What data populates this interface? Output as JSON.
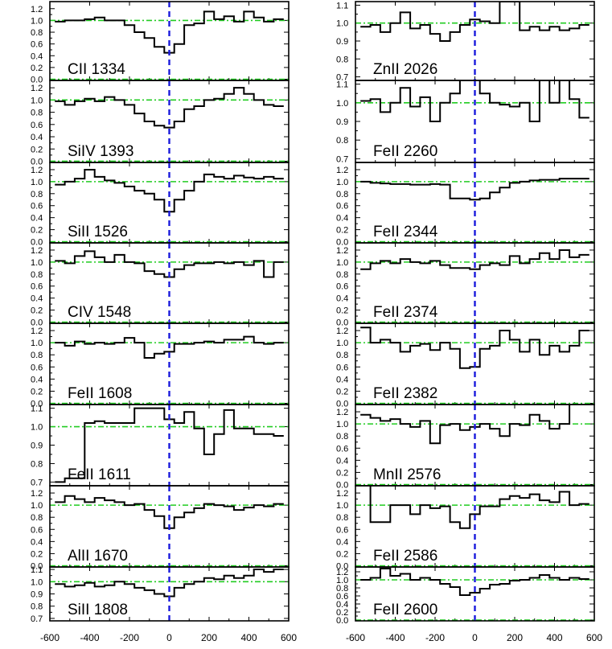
{
  "chart_data": {
    "type": "line",
    "plot_style": "step",
    "x_ticks": [
      -600,
      -400,
      -200,
      0,
      200,
      400,
      600
    ],
    "x_tick_labels": [
      "-600",
      "-400",
      "-200",
      "0",
      "200",
      "400",
      "600"
    ],
    "xlim": [
      -600,
      600
    ],
    "reference_lines": {
      "velocity_zero": 0,
      "y_levels": [
        0.0,
        1.0
      ],
      "zero_line_color": "#1a1adc",
      "level_line_color": "#22cc22"
    },
    "panels": [
      {
        "label": "CII 1334",
        "column": "left",
        "ylim": [
          -0.02,
          1.32
        ],
        "y_ticks": [
          "0.0",
          "0.2",
          "0.4",
          "0.6",
          "0.8",
          "1.0",
          "1.2"
        ],
        "x": [
          -550,
          -500,
          -450,
          -400,
          -350,
          -300,
          -250,
          -200,
          -150,
          -100,
          -50,
          0,
          50,
          100,
          150,
          200,
          250,
          300,
          350,
          400,
          450,
          500,
          550
        ],
        "y": [
          0.98,
          1.0,
          1.0,
          1.02,
          1.05,
          1.0,
          1.0,
          0.92,
          0.8,
          0.7,
          0.55,
          0.45,
          0.6,
          0.92,
          0.95,
          1.15,
          1.02,
          1.07,
          0.98,
          1.15,
          1.05,
          0.98,
          1.02
        ]
      },
      {
        "label": "SiIV 1393",
        "column": "left",
        "ylim": [
          -0.02,
          1.32
        ],
        "y_ticks": [
          "0.0",
          "0.2",
          "0.4",
          "0.6",
          "0.8",
          "1.0",
          "1.2"
        ],
        "x": [
          -550,
          -500,
          -450,
          -400,
          -350,
          -300,
          -250,
          -200,
          -150,
          -100,
          -50,
          0,
          50,
          100,
          150,
          200,
          250,
          300,
          350,
          400,
          450,
          500,
          550
        ],
        "y": [
          0.98,
          0.92,
          0.98,
          1.02,
          0.98,
          1.05,
          1.0,
          0.92,
          0.78,
          0.65,
          0.58,
          0.55,
          0.65,
          0.85,
          0.9,
          1.0,
          1.02,
          1.1,
          1.2,
          1.1,
          1.0,
          0.92,
          0.9
        ]
      },
      {
        "label": "SiII 1526",
        "column": "left",
        "ylim": [
          -0.02,
          1.32
        ],
        "y_ticks": [
          "0.0",
          "0.2",
          "0.4",
          "0.6",
          "0.8",
          "1.0",
          "1.2"
        ],
        "x": [
          -550,
          -500,
          -450,
          -400,
          -350,
          -300,
          -250,
          -200,
          -150,
          -100,
          -50,
          0,
          50,
          100,
          150,
          200,
          250,
          300,
          350,
          400,
          450,
          500,
          550
        ],
        "y": [
          0.95,
          1.0,
          1.05,
          1.2,
          1.08,
          1.02,
          0.98,
          0.92,
          0.85,
          0.8,
          0.7,
          0.5,
          0.7,
          0.85,
          1.0,
          1.12,
          1.08,
          1.05,
          1.1,
          1.07,
          1.05,
          1.08,
          1.05
        ]
      },
      {
        "label": "CIV 1548",
        "column": "left",
        "ylim": [
          -0.02,
          1.32
        ],
        "y_ticks": [
          "0.0",
          "0.2",
          "0.4",
          "0.6",
          "0.8",
          "1.0",
          "1.2"
        ],
        "x": [
          -550,
          -500,
          -450,
          -400,
          -350,
          -300,
          -250,
          -200,
          -150,
          -100,
          -50,
          0,
          50,
          100,
          150,
          200,
          250,
          300,
          350,
          400,
          450,
          500,
          550
        ],
        "y": [
          1.02,
          0.98,
          1.1,
          1.18,
          1.08,
          1.0,
          1.12,
          1.0,
          0.98,
          0.85,
          0.8,
          0.75,
          0.88,
          0.95,
          0.98,
          0.98,
          1.0,
          0.98,
          1.0,
          0.95,
          1.02,
          0.75,
          1.0
        ]
      },
      {
        "label": "FeII 1608",
        "column": "left",
        "ylim": [
          -0.02,
          1.32
        ],
        "y_ticks": [
          "0.0",
          "0.2",
          "0.4",
          "0.6",
          "0.8",
          "1.0",
          "1.2"
        ],
        "x": [
          -550,
          -500,
          -450,
          -400,
          -350,
          -300,
          -250,
          -200,
          -150,
          -100,
          -50,
          0,
          50,
          100,
          150,
          200,
          250,
          300,
          350,
          400,
          450,
          500,
          550
        ],
        "y": [
          1.0,
          0.95,
          1.02,
          0.98,
          1.0,
          0.98,
          1.0,
          1.08,
          1.0,
          0.75,
          0.82,
          0.85,
          0.98,
          0.98,
          1.0,
          1.02,
          1.0,
          1.05,
          1.05,
          1.1,
          1.0,
          0.98,
          1.0
        ]
      },
      {
        "label": "FeII 1611",
        "column": "left",
        "ylim": [
          0.68,
          1.12
        ],
        "y_ticks": [
          "0.7",
          "0.8",
          "0.9",
          "1.0",
          "1.1"
        ],
        "x": [
          -550,
          -500,
          -450,
          -400,
          -350,
          -300,
          -250,
          -200,
          -150,
          -100,
          -50,
          0,
          50,
          100,
          150,
          200,
          250,
          300,
          350,
          400,
          450,
          500,
          550
        ],
        "y": [
          0.7,
          0.72,
          0.72,
          1.02,
          1.03,
          1.02,
          1.02,
          1.02,
          1.1,
          1.1,
          1.1,
          1.04,
          1.02,
          1.08,
          0.99,
          0.85,
          0.96,
          1.09,
          0.99,
          0.99,
          0.96,
          0.96,
          0.95
        ]
      },
      {
        "label": "AlII 1670",
        "column": "left",
        "ylim": [
          -0.02,
          1.32
        ],
        "y_ticks": [
          "0.0",
          "0.2",
          "0.4",
          "0.6",
          "0.8",
          "1.0",
          "1.2"
        ],
        "x": [
          -550,
          -500,
          -450,
          -400,
          -350,
          -300,
          -250,
          -200,
          -150,
          -100,
          -50,
          0,
          50,
          100,
          150,
          200,
          250,
          300,
          350,
          400,
          450,
          500,
          550
        ],
        "y": [
          1.05,
          1.15,
          1.1,
          1.05,
          1.12,
          1.08,
          1.05,
          1.0,
          1.02,
          0.92,
          0.82,
          0.62,
          0.8,
          0.88,
          0.95,
          1.02,
          1.0,
          0.98,
          0.92,
          0.96,
          1.0,
          0.98,
          1.02
        ]
      },
      {
        "label": "SiII 1808",
        "column": "left",
        "ylim": [
          0.68,
          1.12
        ],
        "y_ticks": [
          "0.7",
          "0.8",
          "0.9",
          "1.0",
          "1.1"
        ],
        "x": [
          -550,
          -500,
          -450,
          -400,
          -350,
          -300,
          -250,
          -200,
          -150,
          -100,
          -50,
          0,
          50,
          100,
          150,
          200,
          250,
          300,
          350,
          400,
          450,
          500,
          550
        ],
        "y": [
          0.98,
          0.96,
          0.97,
          0.99,
          0.96,
          0.97,
          1.0,
          0.98,
          0.95,
          0.93,
          0.9,
          0.88,
          0.95,
          0.98,
          1.0,
          1.03,
          1.02,
          1.05,
          1.03,
          1.05,
          1.1,
          1.08,
          1.1
        ]
      },
      {
        "label": "ZnII 2026",
        "column": "right",
        "ylim": [
          0.68,
          1.12
        ],
        "y_ticks": [
          "0.7",
          "0.8",
          "0.9",
          "1.0",
          "1.1"
        ],
        "x": [
          -550,
          -500,
          -450,
          -400,
          -350,
          -300,
          -250,
          -200,
          -150,
          -100,
          -50,
          0,
          50,
          100,
          150,
          200,
          250,
          300,
          350,
          400,
          450,
          500,
          550
        ],
        "y": [
          0.98,
          0.99,
          0.95,
          1.0,
          1.06,
          0.97,
          0.99,
          0.94,
          0.9,
          0.95,
          0.99,
          1.02,
          1.01,
          1.0,
          1.12,
          1.12,
          0.96,
          0.98,
          0.96,
          0.98,
          0.96,
          0.97,
          0.99
        ]
      },
      {
        "label": "FeII 2260",
        "column": "right",
        "ylim": [
          0.68,
          1.12
        ],
        "y_ticks": [
          "0.7",
          "0.8",
          "0.9",
          "1.0",
          "1.1"
        ],
        "x": [
          -550,
          -500,
          -450,
          -400,
          -350,
          -300,
          -250,
          -200,
          -150,
          -100,
          -50,
          0,
          50,
          100,
          150,
          200,
          250,
          300,
          350,
          400,
          450,
          500,
          550
        ],
        "y": [
          1.01,
          1.02,
          0.95,
          1.0,
          1.08,
          0.98,
          1.03,
          0.9,
          1.0,
          1.05,
          1.12,
          1.12,
          1.05,
          1.0,
          0.99,
          0.98,
          1.0,
          0.9,
          1.12,
          1.0,
          1.12,
          1.02,
          0.92
        ]
      },
      {
        "label": "FeII 2344",
        "column": "right",
        "ylim": [
          -0.02,
          1.32
        ],
        "y_ticks": [
          "0.0",
          "0.2",
          "0.4",
          "0.6",
          "0.8",
          "1.0",
          "1.2"
        ],
        "x": [
          -550,
          -500,
          -450,
          -400,
          -350,
          -300,
          -250,
          -200,
          -150,
          -100,
          -50,
          0,
          50,
          100,
          150,
          200,
          250,
          300,
          350,
          400,
          450,
          500,
          550
        ],
        "y": [
          1.0,
          0.98,
          0.97,
          0.96,
          0.96,
          0.95,
          0.95,
          0.96,
          0.95,
          0.72,
          0.72,
          0.7,
          0.72,
          0.82,
          0.9,
          0.98,
          1.0,
          1.02,
          1.03,
          1.03,
          1.05,
          1.05,
          1.05
        ]
      },
      {
        "label": "FeII 2374",
        "column": "right",
        "ylim": [
          -0.02,
          1.32
        ],
        "y_ticks": [
          "0.0",
          "0.2",
          "0.4",
          "0.6",
          "0.8",
          "1.0",
          "1.2"
        ],
        "x": [
          -550,
          -500,
          -450,
          -400,
          -350,
          -300,
          -250,
          -200,
          -150,
          -100,
          -50,
          0,
          50,
          100,
          150,
          200,
          250,
          300,
          350,
          400,
          450,
          500,
          550
        ],
        "y": [
          0.88,
          0.98,
          1.02,
          0.98,
          1.05,
          1.0,
          0.98,
          1.02,
          0.95,
          0.9,
          0.9,
          0.88,
          0.95,
          0.98,
          0.95,
          1.1,
          0.98,
          1.05,
          1.15,
          1.05,
          1.2,
          1.08,
          1.12
        ]
      },
      {
        "label": "FeII 2382",
        "column": "right",
        "ylim": [
          -0.02,
          1.32
        ],
        "y_ticks": [
          "0.0",
          "0.2",
          "0.4",
          "0.6",
          "0.8",
          "1.0",
          "1.2"
        ],
        "x": [
          -550,
          -500,
          -450,
          -400,
          -350,
          -300,
          -250,
          -200,
          -150,
          -100,
          -50,
          0,
          50,
          100,
          150,
          200,
          250,
          300,
          350,
          400,
          450,
          500,
          550
        ],
        "y": [
          1.25,
          1.0,
          1.05,
          1.0,
          0.85,
          0.95,
          0.98,
          0.88,
          1.0,
          0.9,
          0.58,
          0.6,
          0.9,
          0.95,
          1.2,
          1.05,
          0.85,
          1.05,
          0.8,
          0.95,
          0.85,
          0.95,
          1.2
        ]
      },
      {
        "label": "MnII 2576",
        "column": "right",
        "ylim": [
          -0.02,
          1.32
        ],
        "y_ticks": [
          "0.0",
          "0.2",
          "0.4",
          "0.6",
          "0.8",
          "1.0",
          "1.2"
        ],
        "x": [
          -550,
          -500,
          -450,
          -400,
          -350,
          -300,
          -250,
          -200,
          -150,
          -100,
          -50,
          0,
          50,
          100,
          150,
          200,
          250,
          300,
          350,
          400,
          450,
          500,
          550
        ],
        "y": [
          1.15,
          1.1,
          1.05,
          1.08,
          1.0,
          0.95,
          1.05,
          0.68,
          0.98,
          1.0,
          0.9,
          0.95,
          1.0,
          0.92,
          0.8,
          1.0,
          0.98,
          1.15,
          1.05,
          0.92,
          1.0,
          1.35,
          1.35
        ]
      },
      {
        "label": "FeII 2586",
        "column": "right",
        "ylim": [
          -0.02,
          1.32
        ],
        "y_ticks": [
          "0.0",
          "0.2",
          "0.4",
          "0.6",
          "0.8",
          "1.0",
          "1.2"
        ],
        "x": [
          -550,
          -500,
          -450,
          -400,
          -350,
          -300,
          -250,
          -200,
          -150,
          -100,
          -50,
          0,
          50,
          100,
          150,
          200,
          250,
          300,
          350,
          400,
          450,
          500,
          550
        ],
        "y": [
          1.38,
          0.72,
          0.72,
          1.0,
          1.0,
          0.85,
          1.0,
          0.95,
          0.98,
          0.72,
          0.62,
          0.85,
          0.98,
          0.98,
          1.1,
          1.15,
          1.12,
          1.18,
          1.08,
          1.05,
          1.22,
          1.0,
          1.02
        ]
      },
      {
        "label": "FeII 2600",
        "column": "right",
        "ylim": [
          -0.02,
          1.32
        ],
        "y_ticks": [
          "0.0",
          "0.2",
          "0.4",
          "0.6",
          "0.8",
          "1.0",
          "1.2"
        ],
        "x": [
          -550,
          -500,
          -450,
          -400,
          -350,
          -300,
          -250,
          -200,
          -150,
          -100,
          -50,
          0,
          50,
          100,
          150,
          200,
          250,
          300,
          350,
          400,
          450,
          500,
          550
        ],
        "y": [
          1.0,
          1.05,
          1.28,
          1.1,
          1.15,
          1.0,
          1.05,
          1.0,
          0.9,
          0.82,
          0.62,
          0.68,
          0.78,
          0.88,
          0.9,
          0.98,
          1.0,
          1.05,
          1.12,
          1.05,
          1.0,
          1.05,
          1.02
        ]
      }
    ]
  }
}
